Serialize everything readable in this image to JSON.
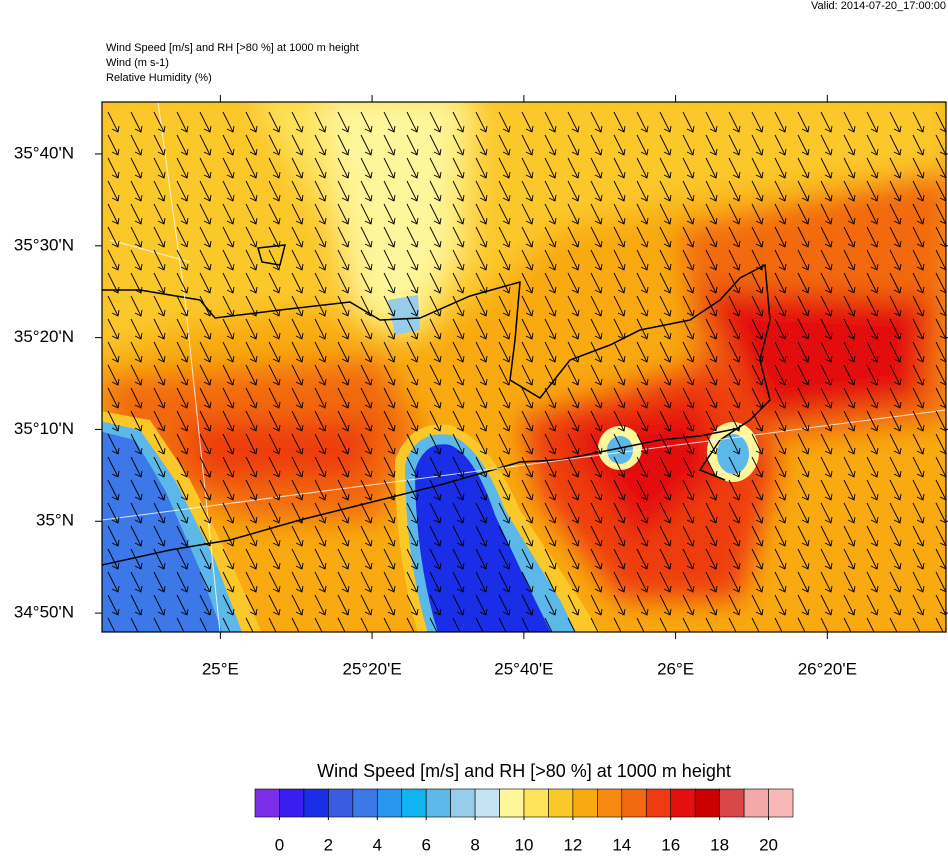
{
  "chart_data": {
    "type": "map",
    "valid": "Valid: 2014-07-20_17:00:00",
    "header": [
      "Wind Speed [m/s] and RH [>80 %] at 1000 m height",
      "Wind   (m s-1)",
      "Relative Humidity   (%)"
    ],
    "xlim": [
      24.74,
      26.594
    ],
    "ylim": [
      34.799,
      35.761
    ],
    "xticks": [
      {
        "value": 25,
        "label": "25°E"
      },
      {
        "value": 25.3333,
        "label": "25°20'E"
      },
      {
        "value": 25.6667,
        "label": "25°40'E"
      },
      {
        "value": 26,
        "label": "26°E"
      },
      {
        "value": 26.3333,
        "label": "26°20'E"
      }
    ],
    "yticks": [
      {
        "value": 34.8333,
        "label": "34°50'N"
      },
      {
        "value": 35,
        "label": "35°N"
      },
      {
        "value": 35.1667,
        "label": "35°10'N"
      },
      {
        "value": 35.3333,
        "label": "35°20'N"
      },
      {
        "value": 35.5,
        "label": "35°30'N"
      },
      {
        "value": 35.6667,
        "label": "35°40'N"
      }
    ],
    "colorbar": {
      "title": "Wind Speed [m/s] and RH [>80 %] at 1000 m height",
      "clim": [
        -1,
        21
      ],
      "ticks": [
        0,
        2,
        4,
        6,
        8,
        10,
        12,
        14,
        16,
        18,
        20
      ],
      "colors": [
        "#7b2ee8",
        "#3a1ef0",
        "#1a2ee8",
        "#3a5ce0",
        "#3c78e8",
        "#2a96f0",
        "#10b4f0",
        "#5cb8e8",
        "#98cceb",
        "#c4e4f4",
        "#fff59a",
        "#fde35a",
        "#fbc82a",
        "#f8aa10",
        "#f68a10",
        "#f26a10",
        "#ee3c10",
        "#e41010",
        "#c80000",
        "#d84848",
        "#f4a8a8",
        "#f8b8b8"
      ]
    }
  }
}
